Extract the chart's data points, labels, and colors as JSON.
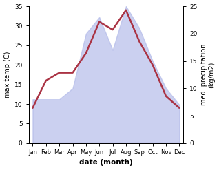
{
  "months": [
    "Jan",
    "Feb",
    "Mar",
    "Apr",
    "May",
    "Jun",
    "Jul",
    "Aug",
    "Sep",
    "Oct",
    "Nov",
    "Dec"
  ],
  "x": [
    1,
    2,
    3,
    4,
    5,
    6,
    7,
    8,
    9,
    10,
    11,
    12
  ],
  "temperature": [
    9,
    16,
    18,
    18,
    23,
    31,
    29,
    34,
    26,
    20,
    12,
    9
  ],
  "precipitation": [
    8,
    8,
    8,
    10,
    20,
    23,
    17,
    25,
    21,
    15,
    10,
    7
  ],
  "temp_ylim": [
    0,
    35
  ],
  "precip_ylim": [
    0,
    25
  ],
  "temp_yticks": [
    0,
    5,
    10,
    15,
    20,
    25,
    30,
    35
  ],
  "precip_yticks": [
    0,
    5,
    10,
    15,
    20,
    25
  ],
  "left_ylabel": "max temp (C)",
  "right_ylabel": "med. precipitation\n(kg/m2)",
  "xlabel": "date (month)",
  "fill_color": "#b0b8e8",
  "fill_alpha": 0.65,
  "line_color": "#aa3344",
  "line_width": 1.8,
  "bg_color": "#ffffff"
}
